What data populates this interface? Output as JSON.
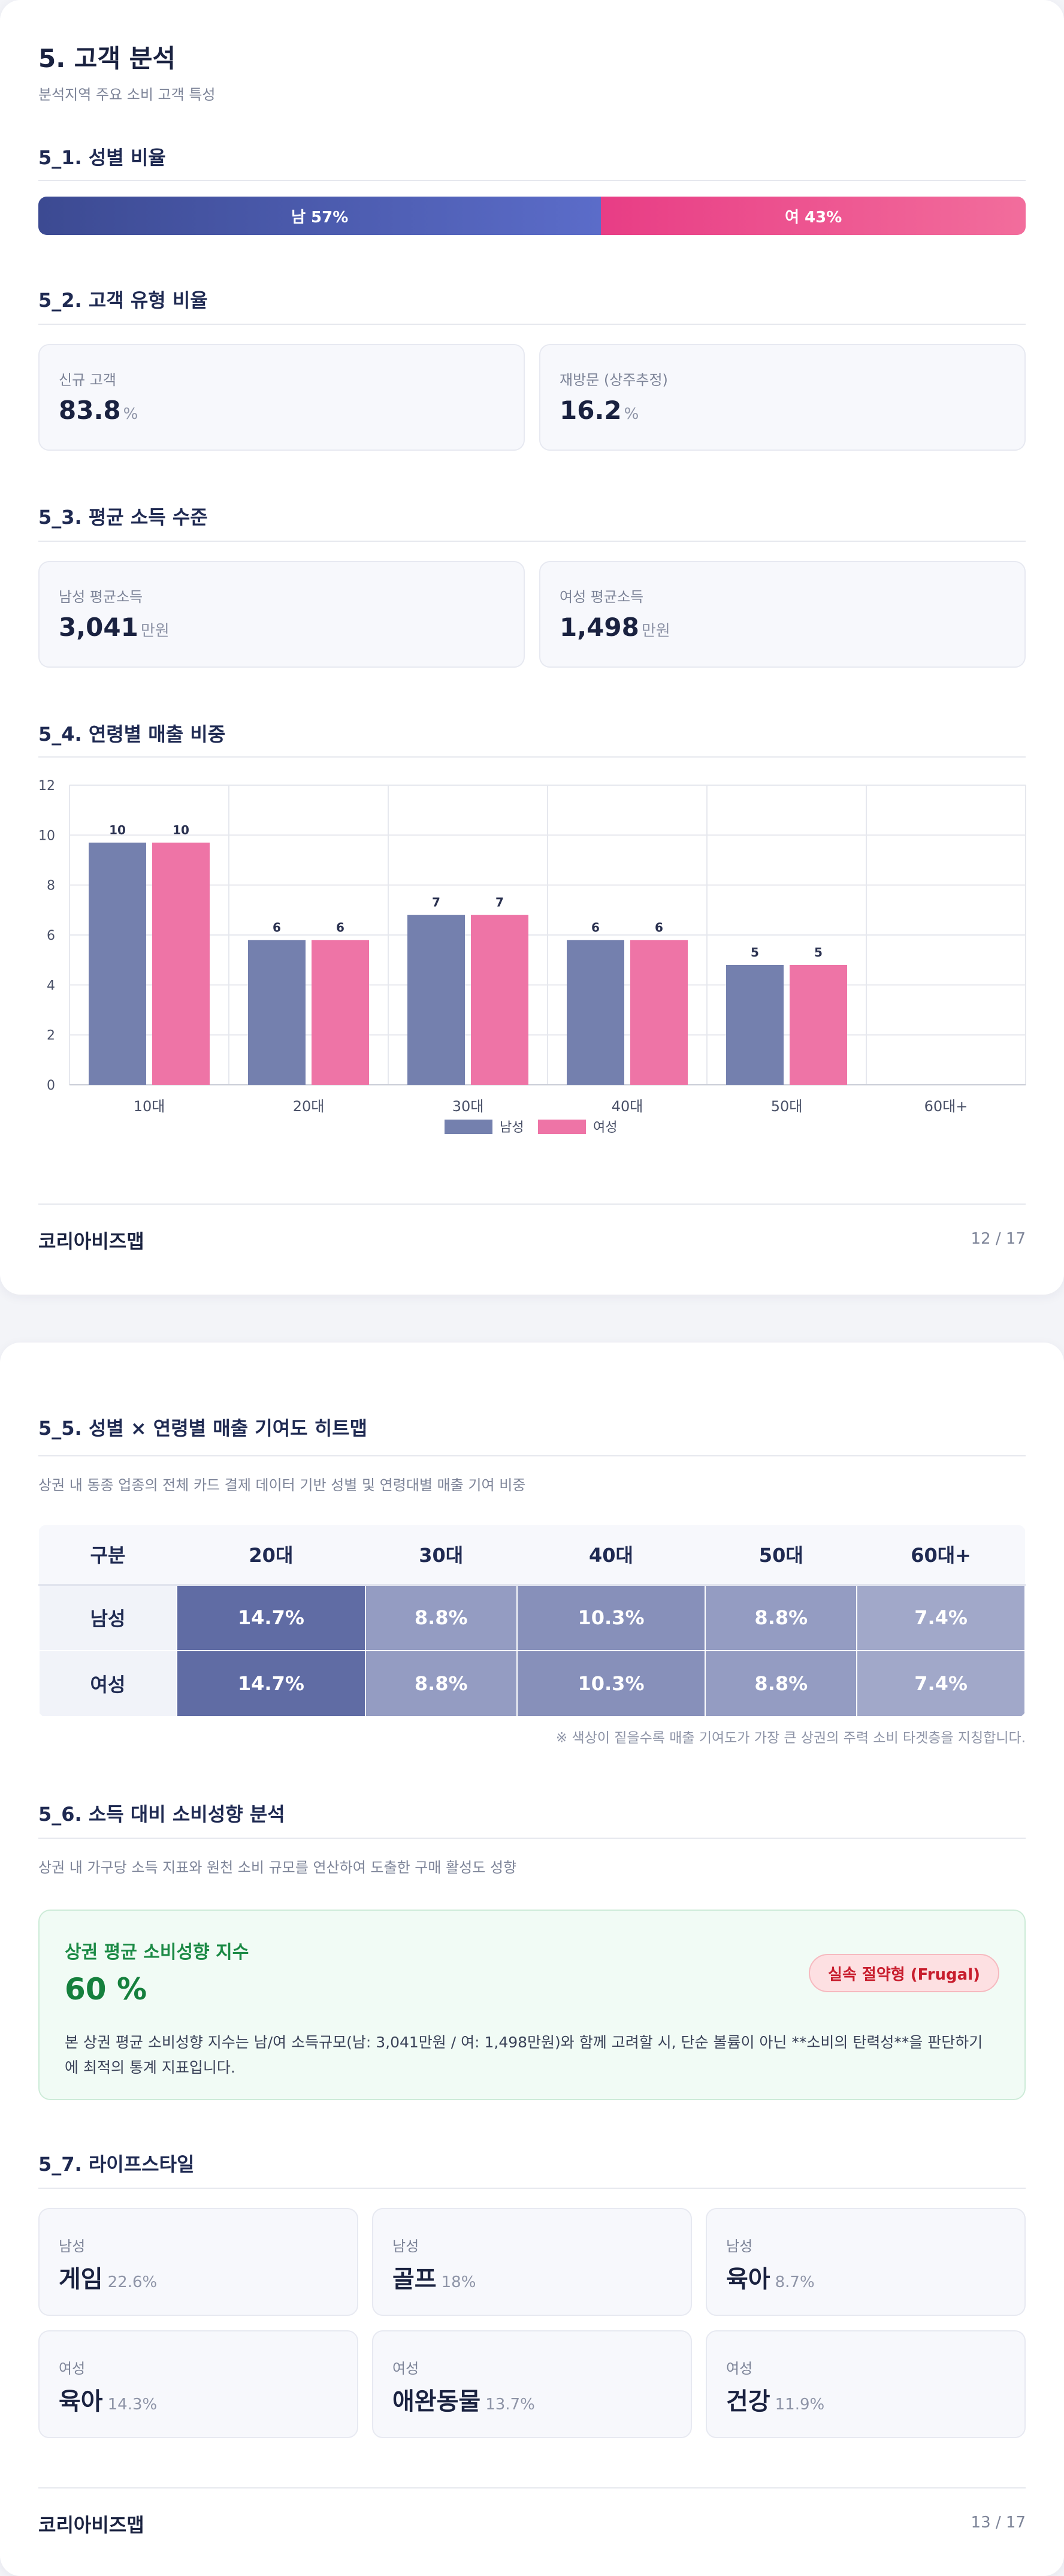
{
  "page1": {
    "title": "5. 고객 분석",
    "subtitle": "분석지역 주요 소비 고객 특성",
    "gender": {
      "heading": "5_1. 성별 비율",
      "male_label": "남 57%",
      "female_label": "여 43%",
      "male_share": 57,
      "female_share": 43
    },
    "customer_type": {
      "heading": "5_2. 고객 유형 비율",
      "cards": [
        {
          "label": "신규 고객",
          "value": "83.8",
          "unit": "%"
        },
        {
          "label": "재방문 (상주추정)",
          "value": "16.2",
          "unit": "%"
        }
      ]
    },
    "income": {
      "heading": "5_3. 평균 소득 수준",
      "cards": [
        {
          "label": "남성 평균소득",
          "value": "3,041",
          "unit": "만원"
        },
        {
          "label": "여성 평균소득",
          "value": "1,498",
          "unit": "만원"
        }
      ]
    },
    "age_sales": {
      "heading": "5_4. 연령별 매출 비중"
    },
    "footer": {
      "brand": "코리아비즈맵",
      "page": "12 / 17"
    }
  },
  "chart_data": {
    "type": "bar",
    "categories": [
      "10대",
      "20대",
      "30대",
      "40대",
      "50대",
      "60대+"
    ],
    "series": [
      {
        "name": "남성",
        "values": [
          9.7,
          5.8,
          6.8,
          5.8,
          4.8,
          0
        ],
        "labels": [
          "10",
          "6",
          "7",
          "6",
          "5",
          ""
        ]
      },
      {
        "name": "여성",
        "values": [
          9.7,
          5.8,
          6.8,
          5.8,
          4.8,
          0
        ],
        "labels": [
          "10",
          "6",
          "7",
          "6",
          "5",
          ""
        ]
      }
    ],
    "y_ticks": [
      "0",
      "2",
      "4",
      "6",
      "8",
      "10",
      "12"
    ],
    "ylim": [
      0,
      12
    ],
    "grid": true,
    "legend": "bottom-center",
    "colors": {
      "남성": "#7480ae",
      "여성": "#ee74a6"
    }
  },
  "page2": {
    "heatmap": {
      "heading": "5_5. 성별 × 연령별 매출 기여도 히트맵",
      "description": "상권 내 동종 업종의 전체 카드 결제 데이터 기반 성별 및 연령대별 매출 기여 비중",
      "columns": [
        "구분",
        "20대",
        "30대",
        "40대",
        "50대",
        "60대+"
      ],
      "rows": [
        {
          "label": "남성",
          "cells": [
            "14.7%",
            "8.8%",
            "10.3%",
            "8.8%",
            "7.4%"
          ]
        },
        {
          "label": "여성",
          "cells": [
            "14.7%",
            "8.8%",
            "10.3%",
            "8.8%",
            "7.4%"
          ]
        }
      ],
      "intensity": [
        1.0,
        0.6,
        0.7,
        0.6,
        0.5
      ],
      "note": "※ 색상이 짙을수록 매출 기여도가 가장 큰 상권의 주력 소비 타겟층을 지칭합니다."
    },
    "spending": {
      "heading": "5_6. 소득 대비 소비성향 분석",
      "description": "상권 내 가구당 소득 지표와 원천 소비 규모를 연산하여 도출한 구매 활성도 성향",
      "card_title": "상권 평균 소비성향 지수",
      "value": "60 %",
      "badge": "실속 절약형 (Frugal)",
      "text_line1": "본 상권 평균 소비성향 지수는 남/여 소득규모(남: 3,041만원 / 여: 1,498만원)와 함께 고려할 시, 단순 볼륨이 아닌 **소비의 탄력성**을 판단하기",
      "text_line2": "에 최적의 통계 지표입니다."
    },
    "lifestyle": {
      "heading": "5_7. 라이프스타일",
      "items": [
        {
          "gender": "남성",
          "name": "게임",
          "pct": "22.6%"
        },
        {
          "gender": "남성",
          "name": "골프",
          "pct": "18%"
        },
        {
          "gender": "남성",
          "name": "육아",
          "pct": "8.7%"
        },
        {
          "gender": "여성",
          "name": "육아",
          "pct": "14.3%"
        },
        {
          "gender": "여성",
          "name": "애완동물",
          "pct": "13.7%"
        },
        {
          "gender": "여성",
          "name": "건강",
          "pct": "11.9%"
        }
      ]
    },
    "footer": {
      "brand": "코리아비즈맵",
      "page": "13 / 17"
    }
  }
}
